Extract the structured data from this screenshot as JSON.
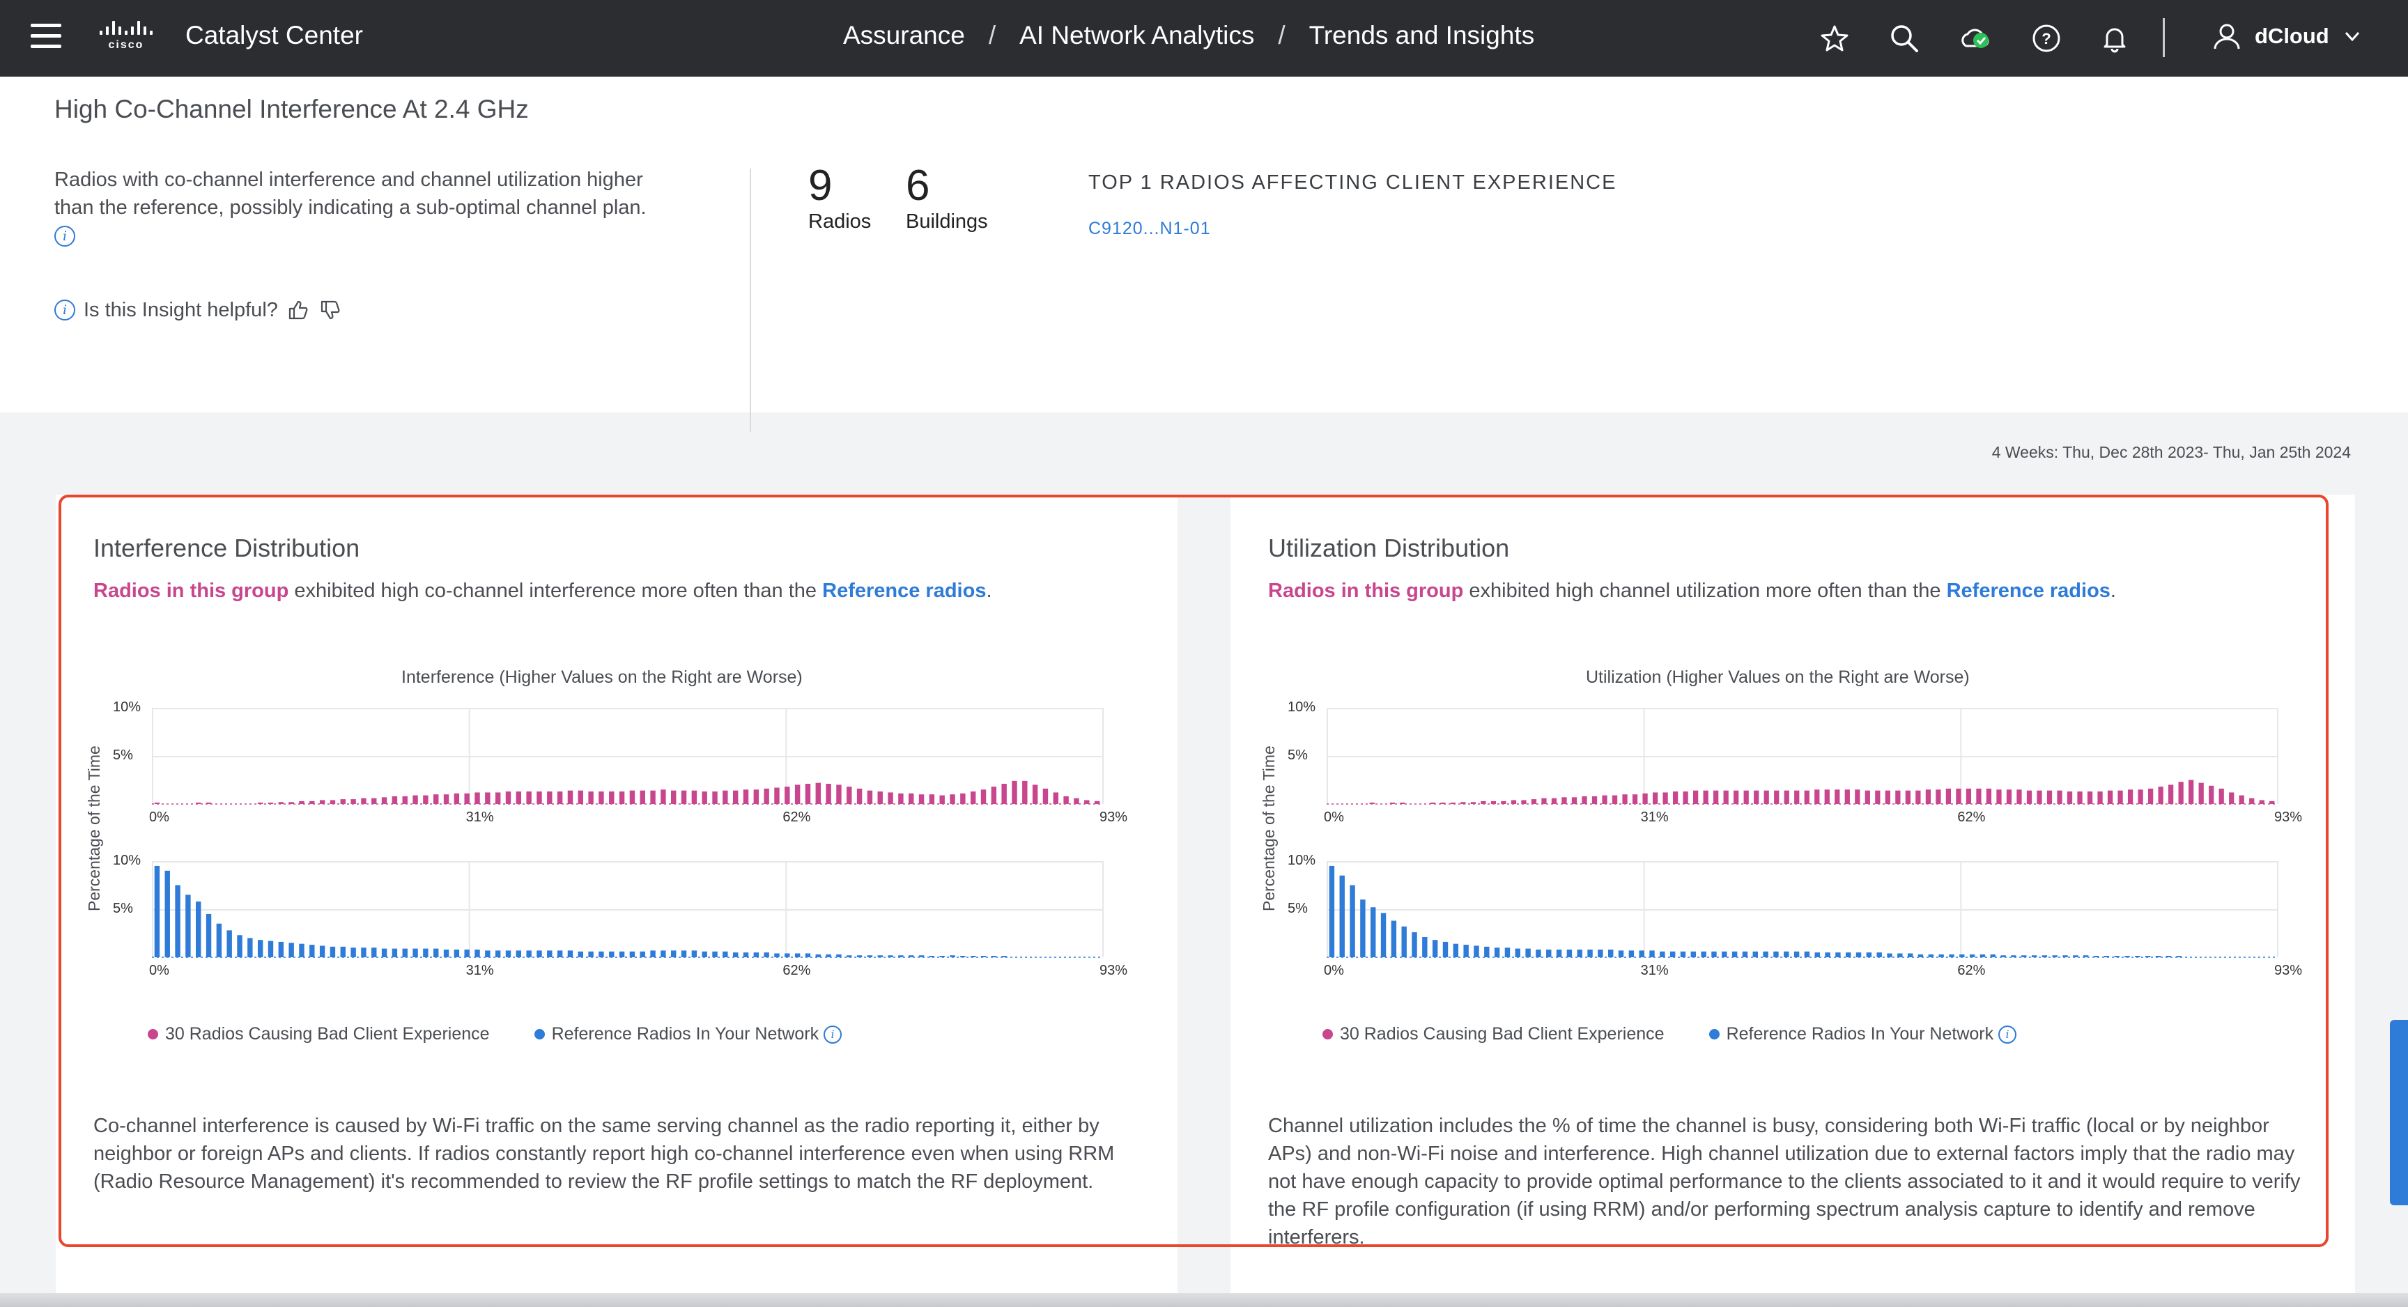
{
  "topbar": {
    "brand": "cisco",
    "app_title": "Catalyst Center",
    "breadcrumb": [
      "Assurance",
      "AI Network Analytics",
      "Trends and Insights"
    ],
    "separator": "/",
    "user": "dCloud",
    "icons": [
      "menu-icon",
      "star-icon",
      "search-icon",
      "cloud-status-icon",
      "help-icon",
      "bell-icon",
      "user-icon",
      "chevron-down-icon"
    ],
    "status_color": "#2dbf58"
  },
  "insight": {
    "title": "High Co-Channel Interference At 2.4 GHz",
    "description": "Radios with co-channel interference and channel utilization higher than the reference, possibly indicating a sub-optimal channel plan.",
    "helpful_prompt": "Is this Insight helpful?",
    "stats": [
      {
        "value": "9",
        "label": "Radios"
      },
      {
        "value": "6",
        "label": "Buildings"
      }
    ],
    "top_radios_heading": "TOP 1 RADIOS AFFECTING CLIENT EXPERIENCE",
    "top_radios": [
      "C9120...N1-01"
    ]
  },
  "date_range": "4 Weeks: Thu, Dec 28th 2023- Thu, Jan 25th 2024",
  "colors": {
    "group": "#c8468e",
    "reference": "#2e7bd8",
    "highlight_box": "#e8472e"
  },
  "panels": [
    {
      "title": "Interference Distribution",
      "sub_group": "Radios in this group",
      "sub_middle": " exhibited high co-channel interference more often than the ",
      "sub_ref": "Reference radios",
      "sub_end": ".",
      "chart_title": "Interference (Higher Values on the Right are Worse)",
      "y_label": "Percentage of the Time",
      "legend_group": "30 Radios Causing Bad Client Experience",
      "legend_ref": "Reference Radios In Your Network",
      "description": "Co-channel interference is caused by Wi-Fi traffic on the same serving channel as the radio reporting it, either by neighbor or foreign APs and clients. If radios constantly report high co-channel interference even when using RRM (Radio Resource Management) it's recommended to review the RF profile settings to match the RF deployment."
    },
    {
      "title": "Utilization Distribution",
      "sub_group": "Radios in this group",
      "sub_middle": " exhibited high channel utilization more often than the ",
      "sub_ref": "Reference radios",
      "sub_end": ".",
      "chart_title": "Utilization (Higher Values on the Right are Worse)",
      "y_label": "Percentage of the Time",
      "legend_group": "30 Radios Causing Bad Client Experience",
      "legend_ref": "Reference Radios In Your Network",
      "description": "Channel utilization includes the % of time the channel is busy, considering both Wi-Fi traffic (local or by neighbor APs) and non-Wi-Fi noise and interference. High channel utilization due to external factors imply that the radio may not have enough capacity to provide optimal performance to the clients associated to it and it would require to verify the RF profile configuration (if using RRM) and/or performing spectrum analysis capture to identify and remove interferers."
    }
  ],
  "chart_data": [
    {
      "type": "bar",
      "title": "Interference (Higher Values on the Right are Worse)",
      "ylabel": "Percentage of the Time",
      "x_ticks": [
        "0%",
        "31%",
        "62%",
        "93%"
      ],
      "y_ticks": [
        "10%",
        "5%"
      ],
      "ylim": [
        0,
        10
      ],
      "series": [
        {
          "name": "30 Radios Causing Bad Client Experience",
          "color": "#c8468e",
          "values": [
            0.1,
            0,
            0,
            0,
            0.1,
            0.1,
            0,
            0,
            0,
            0,
            0.1,
            0.1,
            0.2,
            0.2,
            0.3,
            0.3,
            0.4,
            0.4,
            0.5,
            0.5,
            0.6,
            0.6,
            0.7,
            0.8,
            0.8,
            0.9,
            0.9,
            1.0,
            1.0,
            1.1,
            1.1,
            1.2,
            1.2,
            1.2,
            1.3,
            1.3,
            1.3,
            1.3,
            1.3,
            1.3,
            1.4,
            1.4,
            1.3,
            1.3,
            1.3,
            1.3,
            1.4,
            1.4,
            1.4,
            1.5,
            1.4,
            1.4,
            1.4,
            1.3,
            1.3,
            1.4,
            1.4,
            1.5,
            1.5,
            1.6,
            1.7,
            1.8,
            2.0,
            2.1,
            2.2,
            2.1,
            2.0,
            1.8,
            1.6,
            1.4,
            1.3,
            1.2,
            1.1,
            1.1,
            1.0,
            1.0,
            0.9,
            1.0,
            1.1,
            1.3,
            1.5,
            1.8,
            2.1,
            2.4,
            2.4,
            2.0,
            1.6,
            1.2,
            0.8,
            0.6,
            0.4,
            0.3
          ]
        },
        {
          "name": "Reference Radios In Your Network",
          "color": "#2e7bd8",
          "values": [
            9.5,
            9.0,
            7.5,
            6.5,
            5.8,
            4.5,
            3.5,
            2.8,
            2.3,
            2.0,
            1.8,
            1.7,
            1.6,
            1.5,
            1.4,
            1.3,
            1.2,
            1.1,
            1.1,
            1.0,
            1.0,
            1.0,
            0.9,
            0.9,
            0.9,
            0.9,
            0.9,
            0.9,
            0.8,
            0.8,
            0.8,
            0.8,
            0.7,
            0.7,
            0.7,
            0.7,
            0.7,
            0.7,
            0.7,
            0.7,
            0.7,
            0.6,
            0.6,
            0.6,
            0.6,
            0.6,
            0.6,
            0.6,
            0.7,
            0.7,
            0.7,
            0.7,
            0.7,
            0.6,
            0.6,
            0.6,
            0.5,
            0.5,
            0.5,
            0.5,
            0.4,
            0.4,
            0.4,
            0.4,
            0.3,
            0.3,
            0.3,
            0.2,
            0.2,
            0.2,
            0.2,
            0.2,
            0.2,
            0.2,
            0.2,
            0.1,
            0.1,
            0.2,
            0.1,
            0.1,
            0.1,
            0.1,
            0.1,
            0,
            0,
            0,
            0,
            0,
            0,
            0,
            0,
            0
          ]
        }
      ]
    },
    {
      "type": "bar",
      "title": "Utilization (Higher Values on the Right are Worse)",
      "ylabel": "Percentage of the Time",
      "x_ticks": [
        "0%",
        "31%",
        "62%",
        "93%"
      ],
      "y_ticks": [
        "10%",
        "5%"
      ],
      "ylim": [
        0,
        10
      ],
      "series": [
        {
          "name": "30 Radios Causing Bad Client Experience",
          "color": "#c8468e",
          "values": [
            0,
            0,
            0,
            0,
            0.1,
            0,
            0.1,
            0.1,
            0,
            0,
            0.1,
            0.1,
            0.1,
            0.2,
            0.2,
            0.3,
            0.3,
            0.3,
            0.4,
            0.4,
            0.5,
            0.6,
            0.6,
            0.7,
            0.7,
            0.8,
            0.8,
            0.9,
            0.9,
            1.0,
            1.0,
            1.1,
            1.2,
            1.2,
            1.3,
            1.3,
            1.4,
            1.4,
            1.4,
            1.4,
            1.4,
            1.4,
            1.4,
            1.4,
            1.4,
            1.4,
            1.4,
            1.4,
            1.5,
            1.5,
            1.5,
            1.5,
            1.5,
            1.4,
            1.4,
            1.4,
            1.4,
            1.4,
            1.4,
            1.5,
            1.5,
            1.6,
            1.6,
            1.6,
            1.6,
            1.6,
            1.5,
            1.5,
            1.5,
            1.4,
            1.4,
            1.4,
            1.4,
            1.3,
            1.3,
            1.3,
            1.3,
            1.4,
            1.4,
            1.5,
            1.5,
            1.6,
            1.8,
            2.0,
            2.3,
            2.5,
            2.2,
            1.9,
            1.6,
            1.2,
            0.9,
            0.6,
            0.4,
            0.3
          ]
        },
        {
          "name": "Reference Radios In Your Network",
          "color": "#2e7bd8",
          "values": [
            9.5,
            8.5,
            7.5,
            6.0,
            5.2,
            4.6,
            3.8,
            3.2,
            2.6,
            2.1,
            1.8,
            1.6,
            1.4,
            1.3,
            1.2,
            1.1,
            1.0,
            1.0,
            0.9,
            0.9,
            0.8,
            0.8,
            0.8,
            0.8,
            0.8,
            0.8,
            0.8,
            0.8,
            0.7,
            0.7,
            0.7,
            0.7,
            0.6,
            0.6,
            0.6,
            0.6,
            0.6,
            0.6,
            0.6,
            0.6,
            0.6,
            0.6,
            0.6,
            0.6,
            0.6,
            0.6,
            0.6,
            0.5,
            0.5,
            0.5,
            0.5,
            0.5,
            0.5,
            0.5,
            0.4,
            0.4,
            0.4,
            0.3,
            0.3,
            0.3,
            0.3,
            0.3,
            0.3,
            0.3,
            0.3,
            0.2,
            0.2,
            0.2,
            0.2,
            0.2,
            0.2,
            0.2,
            0.2,
            0.2,
            0.1,
            0.1,
            0.1,
            0.1,
            0.1,
            0.1,
            0.1,
            0.1,
            0.1,
            0,
            0,
            0,
            0,
            0,
            0,
            0,
            0,
            0
          ]
        }
      ]
    }
  ]
}
